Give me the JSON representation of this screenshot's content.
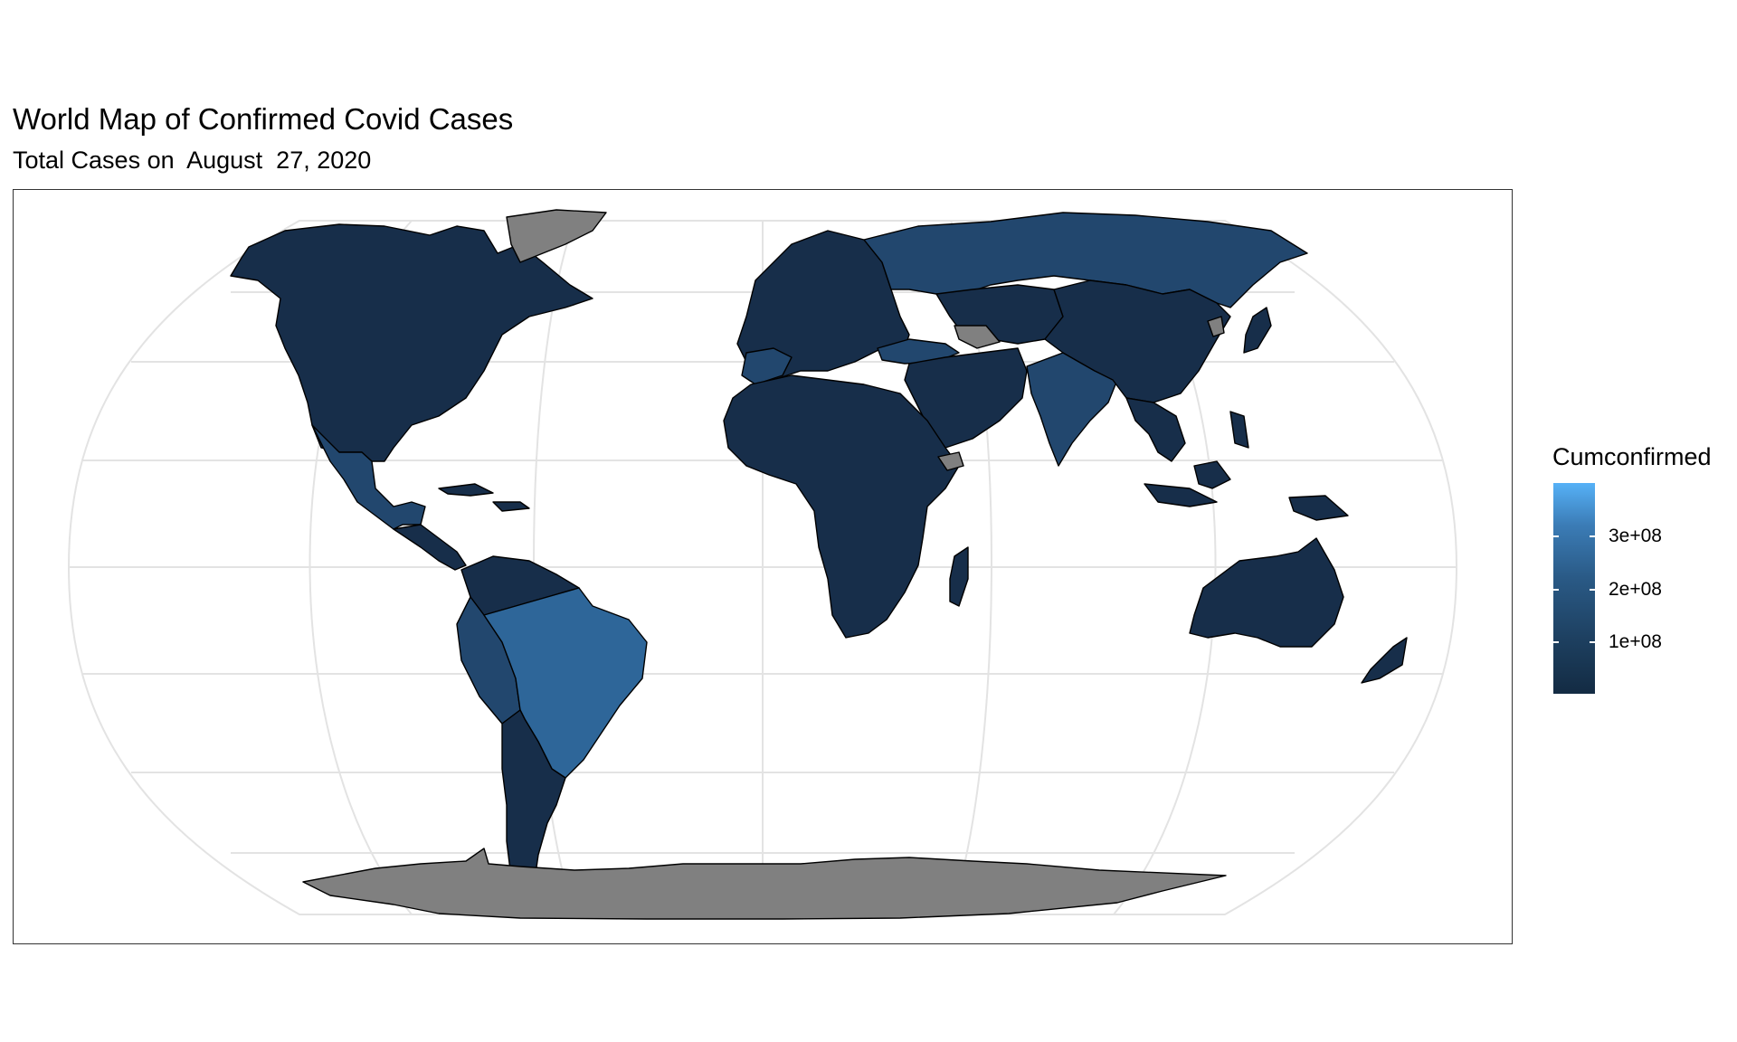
{
  "chart_data": {
    "type": "choropleth map",
    "title": "World Map of Confirmed Covid Cases",
    "subtitle": "Total Cases on  August  27, 2020",
    "legend": {
      "title": "Cumconfirmed",
      "placement": "right",
      "ticks": [
        {
          "value": 300000000,
          "label": "3e+08"
        },
        {
          "value": 200000000,
          "label": "2e+08"
        },
        {
          "value": 100000000,
          "label": "1e+08"
        }
      ],
      "range": [
        0,
        400000000
      ],
      "color_low": "#132b43",
      "color_high": "#56b1f7"
    },
    "missing_color": "#808080",
    "regions": [
      {
        "name": "United States",
        "level": "low"
      },
      {
        "name": "Brazil",
        "level": "high"
      },
      {
        "name": "India",
        "level": "mid"
      },
      {
        "name": "Russia",
        "level": "mid"
      },
      {
        "name": "Mexico",
        "level": "mid"
      },
      {
        "name": "Peru",
        "level": "mid"
      },
      {
        "name": "Greenland",
        "level": "missing"
      },
      {
        "name": "Antarctica",
        "level": "missing"
      },
      {
        "name": "Turkmenistan",
        "level": "missing"
      },
      {
        "name": "North Korea",
        "level": "missing"
      },
      {
        "name": "Somaliland",
        "level": "missing"
      }
    ],
    "grid": true
  },
  "colors": {
    "low": "#172e4a",
    "mid": "#22476e",
    "high": "#2e6699",
    "missing": "#808080",
    "grid": "#e3e3e3"
  }
}
